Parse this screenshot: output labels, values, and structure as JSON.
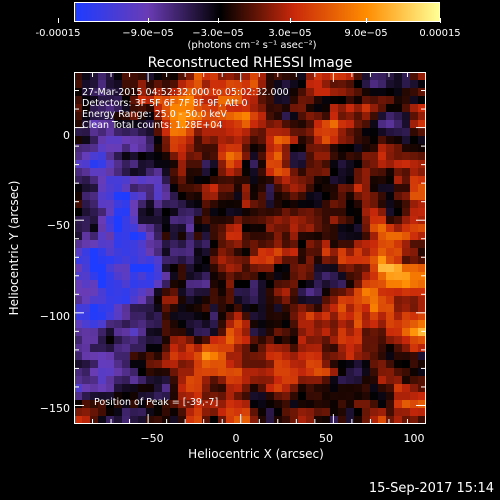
{
  "colorbar": {
    "tick_labels": [
      "-0.00015",
      "−9.0e−05",
      "−3.0e−05",
      "3.0e−05",
      "9.0e−05",
      "0.00015"
    ],
    "units": "(photons cm⁻² s⁻¹ asec⁻²)",
    "range": [
      -0.00015,
      0.00015
    ],
    "colormap": [
      "#1e3cff",
      "#6a3cb4",
      "#000000",
      "#c8280a",
      "#ff8c00",
      "#ffff96"
    ]
  },
  "title": "Reconstructed RHESSI Image",
  "info": {
    "time": "27-Mar-2015 04:52:32.000 to 05:02:32.000",
    "detectors": "Detectors: 3F 5F 6F 7F 8F 9F, Att 0",
    "energy": "Energy Range: 25.0 - 50.0 keV",
    "method": "Clean    Total counts: 1.28E+04",
    "peak": "Position of Peak = [-39,-7]"
  },
  "axes": {
    "xlabel": "Heliocentric X (arcsec)",
    "ylabel": "Heliocentric Y (arcsec)",
    "x_range": [
      -90,
      100
    ],
    "y_range": [
      -160,
      30
    ],
    "x_ticks": [
      -50,
      0,
      50,
      100
    ],
    "y_ticks": [
      0,
      -50,
      -100,
      -150
    ],
    "x_tick_labels": [
      "−50",
      "0",
      "50",
      "100"
    ],
    "y_tick_labels": [
      "0",
      "−50",
      "−100",
      "−150"
    ]
  },
  "footer": "15-Sep-2017 15:14"
}
